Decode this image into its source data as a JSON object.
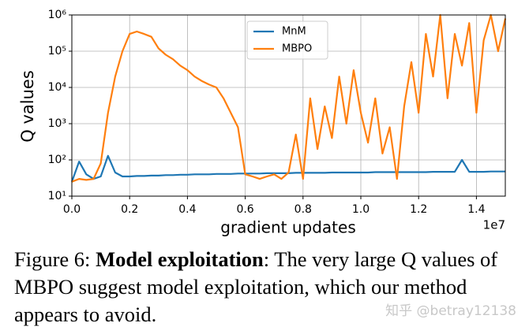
{
  "chart_data": {
    "type": "line",
    "ylabel": "Q values",
    "xlabel": "gradient updates",
    "x_offset_label": "1e7",
    "log_y": true,
    "grid": true,
    "legend": "upper center",
    "xlim": [
      0,
      1.5
    ],
    "ylim": [
      10,
      1000000
    ],
    "xticks": [
      {
        "value": 0,
        "label": "0.0"
      },
      0.2,
      0.4,
      0.6,
      0.8,
      {
        "value": 1,
        "label": "1.0"
      },
      1.2,
      1.4
    ],
    "yticks": [
      {
        "value": 10,
        "label": "10¹"
      },
      {
        "value": 100,
        "label": "10²"
      },
      {
        "value": 1000,
        "label": "10³"
      },
      {
        "value": 10000,
        "label": "10⁴"
      },
      {
        "value": 100000,
        "label": "10⁵"
      },
      {
        "value": 1000000,
        "label": "10⁶"
      }
    ],
    "x": [
      0,
      0.025,
      0.05,
      0.075,
      0.1,
      0.125,
      0.15,
      0.175,
      0.2,
      0.225,
      0.25,
      0.275,
      0.3,
      0.325,
      0.35,
      0.375,
      0.4,
      0.425,
      0.45,
      0.475,
      0.5,
      0.525,
      0.55,
      0.575,
      0.6,
      0.625,
      0.65,
      0.675,
      0.7,
      0.725,
      0.75,
      0.775,
      0.8,
      0.825,
      0.85,
      0.875,
      0.9,
      0.925,
      0.95,
      0.975,
      1,
      1.025,
      1.05,
      1.075,
      1.1,
      1.125,
      1.15,
      1.175,
      1.2,
      1.225,
      1.25,
      1.275,
      1.3,
      1.325,
      1.35,
      1.375,
      1.4,
      1.425,
      1.45,
      1.475,
      1.5
    ],
    "series": [
      {
        "name": "MnM",
        "color": "#1f77b4",
        "values": [
          25,
          90,
          40,
          30,
          35,
          130,
          45,
          35,
          35,
          36,
          36,
          37,
          37,
          38,
          38,
          39,
          39,
          40,
          40,
          40,
          41,
          41,
          41,
          42,
          42,
          42,
          42,
          43,
          43,
          43,
          43,
          44,
          44,
          44,
          44,
          44,
          45,
          45,
          45,
          45,
          45,
          45,
          46,
          46,
          46,
          46,
          46,
          46,
          46,
          46,
          47,
          47,
          47,
          47,
          100,
          47,
          47,
          47,
          48,
          48,
          48
        ]
      },
      {
        "name": "MBPO",
        "color": "#ff7f0e",
        "values": [
          25,
          30,
          28,
          30,
          80,
          2000,
          20000,
          100000,
          300000,
          350000,
          300000,
          250000,
          120000,
          80000,
          60000,
          40000,
          30000,
          20000,
          15000,
          12000,
          10000,
          5000,
          2000,
          800,
          40,
          35,
          30,
          35,
          40,
          30,
          45,
          500,
          30,
          5000,
          200,
          3000,
          400,
          20000,
          1000,
          30000,
          2000,
          300,
          5000,
          150,
          800,
          30,
          3000,
          50000,
          2000,
          300000,
          20000,
          1000000,
          5000,
          300000,
          40000,
          600000,
          2000,
          200000,
          1000000,
          100000,
          800000
        ]
      }
    ]
  },
  "caption": {
    "label": "Figure 6: ",
    "bold": "Model exploitation",
    "text": ": The very large Q values of MBPO suggest model exploitation, which our method appears to avoid."
  },
  "watermark": "知乎 @betray12138"
}
